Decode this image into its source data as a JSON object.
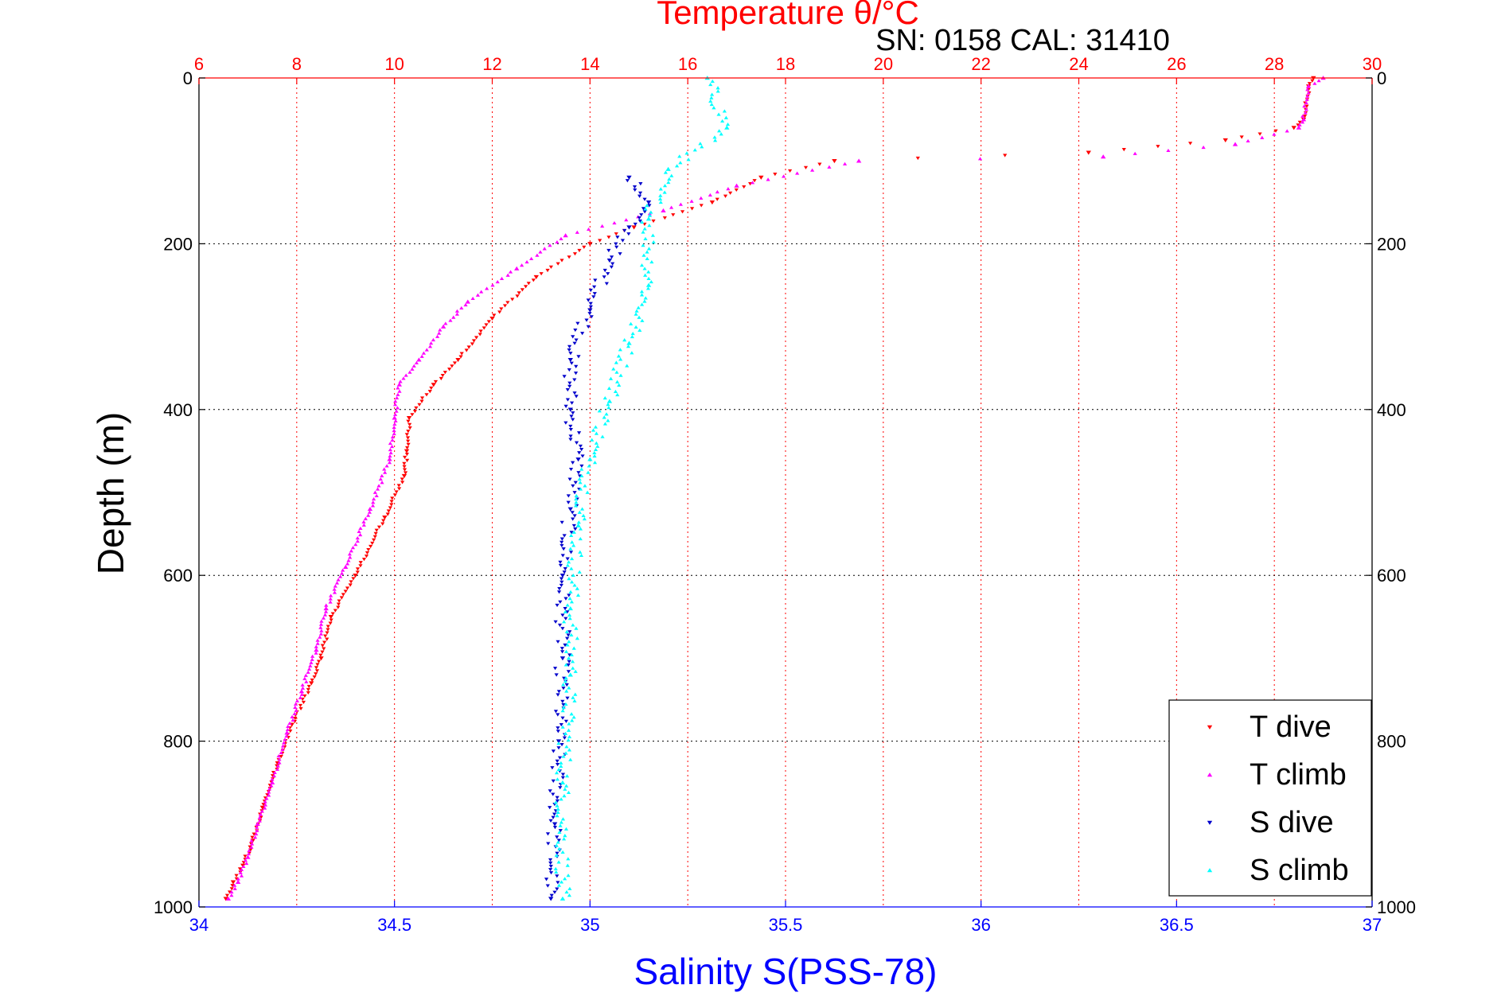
{
  "chart_data": {
    "type": "scatter",
    "title": "Temperature θ/°C",
    "subtitle": "SN: 0158  CAL: 31410",
    "ylabel": "Depth (m)",
    "xlabel": "Salinity S(PSS-78)",
    "ylim": [
      0,
      1000
    ],
    "y_reversed": true,
    "temperature_axis": {
      "position": "top",
      "range": [
        6,
        30
      ],
      "ticks": [
        "6",
        "8",
        "10",
        "12",
        "14",
        "16",
        "18",
        "20",
        "22",
        "24",
        "26",
        "28",
        "30"
      ],
      "color": "#ff0000"
    },
    "salinity_axis": {
      "position": "bottom",
      "range": [
        34,
        37
      ],
      "ticks": [
        "34",
        "34.5",
        "35",
        "35.5",
        "36",
        "36.5",
        "37"
      ],
      "color": "#0000ff"
    },
    "depth_ticks": [
      "0",
      "200",
      "400",
      "600",
      "800",
      "1000"
    ],
    "grid": true,
    "legend_position": "bottom-right",
    "series": [
      {
        "name": "T dive",
        "axis": "temperature",
        "color": "#ff0000",
        "marker": "triangle-down",
        "x": [
          28.8,
          28.7,
          28.6,
          28.4,
          27.0,
          24.2,
          19.0,
          17.5,
          16.5,
          14.9,
          14.0,
          12.9,
          12.0,
          11.3,
          10.8,
          10.3,
          10.25,
          10.2,
          9.8,
          9.2,
          8.7,
          8.5,
          8.3,
          7.9,
          7.6,
          7.3,
          7.1,
          6.9,
          6.7,
          6.55
        ],
        "y": [
          0,
          10,
          50,
          60,
          75,
          90,
          100,
          120,
          150,
          180,
          200,
          240,
          290,
          340,
          370,
          410,
          450,
          480,
          530,
          600,
          650,
          700,
          730,
          780,
          830,
          880,
          920,
          950,
          970,
          990
        ]
      },
      {
        "name": "T climb",
        "axis": "temperature",
        "color": "#ff00ff",
        "marker": "triangle-up",
        "x": [
          29.0,
          28.7,
          28.6,
          28.5,
          27.2,
          24.5,
          19.5,
          17.0,
          15.5,
          13.5,
          12.5,
          11.5,
          11.0,
          10.5,
          10.1,
          10.0,
          9.9,
          9.5,
          9.0,
          8.6,
          8.4,
          8.1,
          7.8,
          7.5,
          7.2,
          7.0,
          6.8,
          6.6
        ],
        "y": [
          0,
          10,
          50,
          60,
          80,
          95,
          100,
          130,
          160,
          190,
          230,
          270,
          300,
          340,
          370,
          410,
          460,
          520,
          590,
          640,
          690,
          740,
          790,
          850,
          900,
          940,
          970,
          990
        ]
      },
      {
        "name": "S dive",
        "axis": "salinity",
        "color": "#0000cc",
        "marker": "triangle-down",
        "x": [
          35.1,
          35.15,
          35.1,
          35.05,
          35.0,
          34.95,
          34.95,
          34.97,
          34.95,
          34.93,
          34.93,
          34.92,
          34.91,
          34.9
        ],
        "y": [
          120,
          150,
          180,
          220,
          280,
          340,
          400,
          460,
          520,
          600,
          700,
          800,
          900,
          990
        ]
      },
      {
        "name": "S climb",
        "axis": "salinity",
        "color": "#00ffff",
        "marker": "triangle-up",
        "x": [
          35.3,
          35.35,
          35.2,
          35.15,
          35.15,
          35.1,
          35.05,
          35.0,
          34.97,
          34.95,
          34.95,
          34.93,
          34.93
        ],
        "y": [
          0,
          60,
          110,
          170,
          250,
          320,
          390,
          460,
          540,
          640,
          720,
          850,
          990
        ]
      }
    ]
  }
}
